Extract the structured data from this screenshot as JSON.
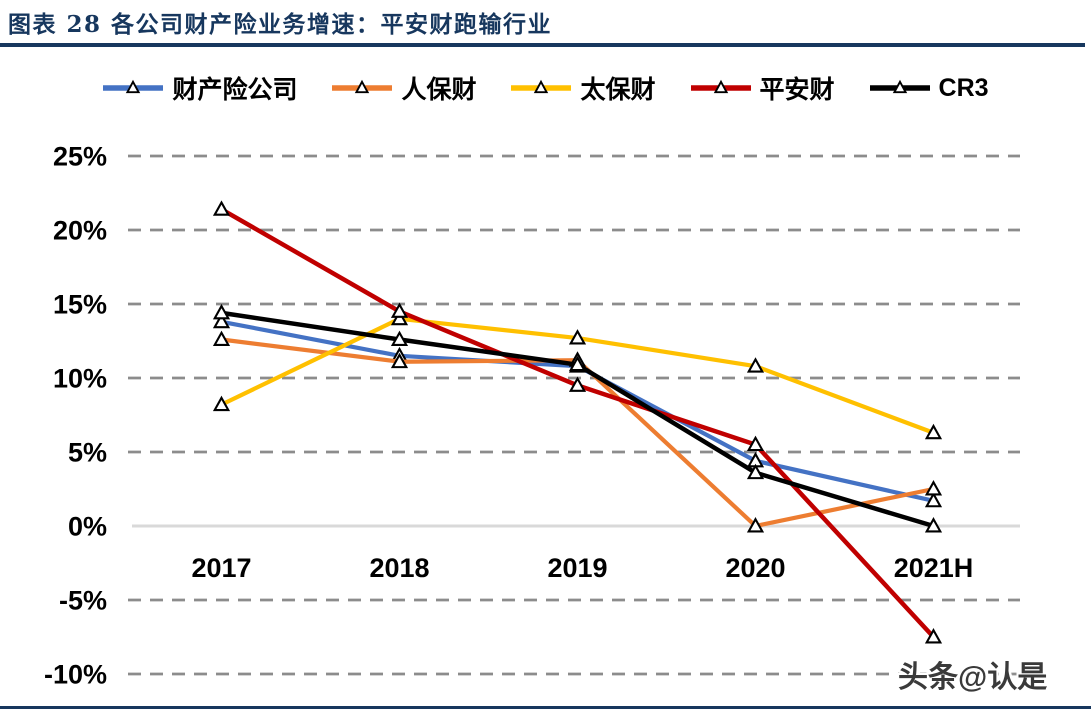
{
  "title": "图表 28  各公司财产险业务增速：平安财跑输行业",
  "watermark": "头条@认是",
  "colors": {
    "accent_navy": "#17375E",
    "gridline_gray": "#8C8C8C",
    "zero_axis_gray": "#D9D9D9",
    "label_black": "#000000"
  },
  "chart_data": {
    "type": "line",
    "title": "各公司财产险业务增速",
    "categories": [
      "2017",
      "2018",
      "2019",
      "2020",
      "2021H"
    ],
    "series": [
      {
        "name": "财产险公司",
        "key": "industry",
        "color": "#4472C4",
        "values": [
          13.8,
          11.5,
          10.8,
          4.4,
          1.7
        ]
      },
      {
        "name": "人保财",
        "key": "picc",
        "color": "#ED7D31",
        "values": [
          12.6,
          11.1,
          11.2,
          0.0,
          2.5
        ]
      },
      {
        "name": "太保财",
        "key": "cpic",
        "color": "#FFC000",
        "values": [
          8.2,
          14.0,
          12.7,
          10.8,
          6.3
        ]
      },
      {
        "name": "平安财",
        "key": "pingan",
        "color": "#C00000",
        "values": [
          21.4,
          14.5,
          9.5,
          5.5,
          -7.5
        ]
      },
      {
        "name": "CR3",
        "key": "cr3",
        "color": "#000000",
        "values": [
          14.4,
          12.6,
          10.9,
          3.6,
          0.0
        ]
      }
    ],
    "y_ticks": [
      25,
      20,
      15,
      10,
      5,
      0,
      -5,
      -10
    ],
    "y_tick_suffix": "%",
    "ylim": [
      -10,
      25
    ],
    "xlabel": "",
    "ylabel": "",
    "grid": "dashed-horizontal",
    "legend_position": "top",
    "marker": "open-triangle"
  }
}
